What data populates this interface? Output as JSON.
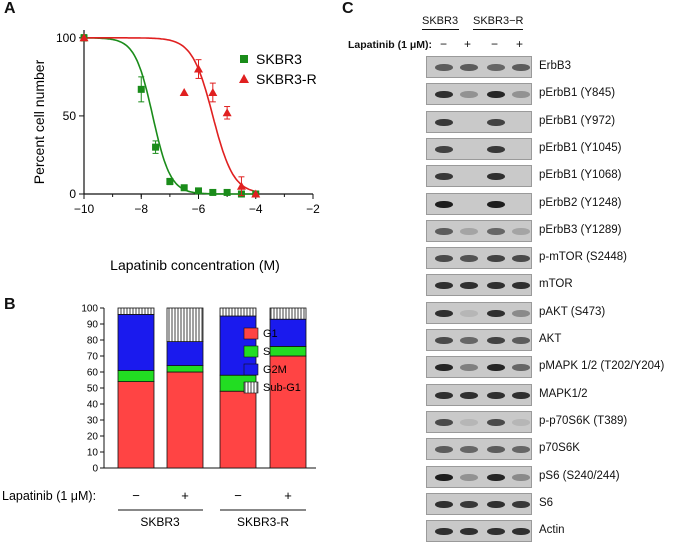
{
  "panels": {
    "a": {
      "letter": "A",
      "chart_data": {
        "type": "scatter",
        "xlabel": "Lapatinib concentration (M)",
        "ylabel": "Percent cell number",
        "xlim": [
          -10,
          -2
        ],
        "ylim": [
          0,
          105
        ],
        "xticks": [
          -10,
          -8,
          -6,
          -4,
          -2
        ],
        "yticks": [
          0,
          50,
          100
        ],
        "series": [
          {
            "name": "SKBR3",
            "color": "#1a8c1a",
            "marker": "square",
            "x": [
              -10,
              -8,
              -7.5,
              -7,
              -6.5,
              -6,
              -5.5,
              -5,
              -4.5,
              -4
            ],
            "y": [
              100,
              67,
              30,
              8,
              4,
              2,
              1,
              1,
              0,
              0
            ],
            "err": [
              2,
              8,
              4,
              2,
              1,
              1,
              0,
              0,
              0,
              0
            ],
            "fit": {
              "ic50": -7.6,
              "hill": 1.4
            }
          },
          {
            "name": "SKBR3-R",
            "color": "#e02020",
            "marker": "triangle",
            "x": [
              -10,
              -6.5,
              -6,
              -5.5,
              -5,
              -4.5,
              -4
            ],
            "y": [
              100,
              65,
              80,
              65,
              52,
              5,
              0
            ],
            "err": [
              0,
              0,
              6,
              6,
              4,
              6,
              0
            ],
            "fit": {
              "ic50": -5.5,
              "hill": 1.2
            }
          }
        ]
      }
    },
    "b": {
      "letter": "B",
      "chart_data": {
        "type": "bar",
        "stacked": true,
        "ylim": [
          0,
          100
        ],
        "yticks": [
          0,
          10,
          20,
          30,
          40,
          50,
          60,
          70,
          80,
          90,
          100
        ],
        "categories": [
          "SKBR3 −",
          "SKBR3 +",
          "SKBR3-R −",
          "SKBR3-R +"
        ],
        "series": [
          {
            "name": "G1",
            "color": "#ff4444",
            "values": [
              54,
              60,
              48,
              70
            ]
          },
          {
            "name": "S",
            "color": "#22dd22",
            "values": [
              7,
              4,
              10,
              6
            ]
          },
          {
            "name": "G2M",
            "color": "#1a1aee",
            "values": [
              35,
              15,
              37,
              17
            ]
          },
          {
            "name": "Sub-G1",
            "color": "#ffffff",
            "pattern": "vertical-hatch",
            "values": [
              4,
              21,
              5,
              7
            ]
          }
        ],
        "treatment_label": "Lapatinib (1 μM):",
        "treatment_signs": [
          "−",
          "+",
          "−",
          "+"
        ],
        "groups": [
          "SKBR3",
          "SKBR3-R"
        ]
      }
    },
    "c": {
      "letter": "C",
      "headers": [
        "SKBR3",
        "SKBR3−R"
      ],
      "treatment_label": "Lapatinib (1 μM):",
      "treatment_signs": [
        "−",
        "+",
        "−",
        "+"
      ],
      "blots": [
        "ErbB3",
        "pErbB1 (Y845)",
        "pErbB1 (Y972)",
        "pErbB1 (Y1045)",
        "pErbB1 (Y1068)",
        "pErbB2 (Y1248)",
        "pErbB3 (Y1289)",
        "p-mTOR (S2448)",
        "mTOR",
        "pAKT (S473)",
        "AKT",
        "pMAPK 1/2 (T202/Y204)",
        "MAPK1/2",
        "p-p70S6K (T389)",
        "p70S6K",
        "pS6 (S240/244)",
        "S6",
        "Actin"
      ],
      "band_intensity": [
        [
          0.6,
          0.6,
          0.55,
          0.6
        ],
        [
          0.85,
          0.3,
          0.9,
          0.3
        ],
        [
          0.8,
          0.0,
          0.75,
          0.0
        ],
        [
          0.75,
          0.0,
          0.8,
          0.0
        ],
        [
          0.8,
          0.0,
          0.85,
          0.0
        ],
        [
          0.95,
          0.0,
          0.95,
          0.0
        ],
        [
          0.6,
          0.2,
          0.55,
          0.2
        ],
        [
          0.7,
          0.65,
          0.75,
          0.7
        ],
        [
          0.85,
          0.85,
          0.85,
          0.85
        ],
        [
          0.85,
          0.1,
          0.85,
          0.35
        ],
        [
          0.7,
          0.55,
          0.75,
          0.6
        ],
        [
          0.9,
          0.4,
          0.9,
          0.55
        ],
        [
          0.85,
          0.85,
          0.85,
          0.85
        ],
        [
          0.7,
          0.1,
          0.7,
          0.1
        ],
        [
          0.6,
          0.55,
          0.6,
          0.55
        ],
        [
          0.95,
          0.3,
          0.9,
          0.35
        ],
        [
          0.85,
          0.8,
          0.85,
          0.8
        ],
        [
          0.85,
          0.85,
          0.85,
          0.85
        ]
      ]
    }
  }
}
